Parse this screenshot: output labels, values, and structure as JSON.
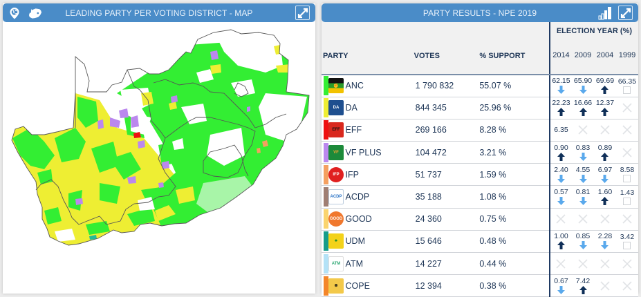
{
  "map_panel": {
    "title": "LEADING PARTY PER VOTING DISTRICT - MAP",
    "icons": [
      "globe-pin-icon",
      "south-africa-map-icon",
      "expand-icon"
    ],
    "map_colors": {
      "ANC": "#33ee33",
      "DA": "#eeee33",
      "EFF": "#ee1111",
      "VF_PLUS": "#bb88ee",
      "IFP": "#f4a060",
      "UDM": "#22bb99",
      "border": "#666666"
    }
  },
  "results_panel": {
    "title": "PARTY RESULTS - NPE 2019",
    "icons": [
      "bar-chart-icon",
      "expand-icon"
    ],
    "columns": {
      "party": "PARTY",
      "votes": "VOTES",
      "support": "% SUPPORT",
      "election_year": "ELECTION YEAR (%)",
      "years": [
        "2014",
        "2009",
        "2004",
        "1999"
      ]
    },
    "rows": [
      {
        "party": "ANC",
        "color": "#33ee33",
        "votes": "1 790 832",
        "support": "55.07 %",
        "history": [
          {
            "value": "62.15",
            "trend": "down"
          },
          {
            "value": "65.90",
            "trend": "down"
          },
          {
            "value": "69.69",
            "trend": "up"
          },
          {
            "value": "66.35",
            "trend": "none"
          }
        ]
      },
      {
        "party": "DA",
        "color": "#eeee33",
        "votes": "844 345",
        "support": "25.96 %",
        "history": [
          {
            "value": "22.23",
            "trend": "up"
          },
          {
            "value": "16.66",
            "trend": "up"
          },
          {
            "value": "12.37",
            "trend": "up"
          },
          {
            "value": "",
            "trend": "na"
          }
        ]
      },
      {
        "party": "EFF",
        "color": "#ee1111",
        "votes": "269 166",
        "support": "8.28 %",
        "history": [
          {
            "value": "6.35",
            "trend": "plain"
          },
          {
            "value": "",
            "trend": "na"
          },
          {
            "value": "",
            "trend": "na"
          },
          {
            "value": "",
            "trend": "na"
          }
        ]
      },
      {
        "party": "VF PLUS",
        "color": "#bb88ee",
        "votes": "104 472",
        "support": "3.21 %",
        "history": [
          {
            "value": "0.90",
            "trend": "up"
          },
          {
            "value": "0.83",
            "trend": "down"
          },
          {
            "value": "0.89",
            "trend": "up"
          },
          {
            "value": "",
            "trend": "na"
          }
        ]
      },
      {
        "party": "IFP",
        "color": "#f4a060",
        "votes": "51 737",
        "support": "1.59 %",
        "history": [
          {
            "value": "2.40",
            "trend": "down"
          },
          {
            "value": "4.55",
            "trend": "down"
          },
          {
            "value": "6.97",
            "trend": "down"
          },
          {
            "value": "8.58",
            "trend": "none"
          }
        ]
      },
      {
        "party": "ACDP",
        "color": "#a07e72",
        "votes": "35 188",
        "support": "1.08 %",
        "history": [
          {
            "value": "0.57",
            "trend": "down"
          },
          {
            "value": "0.81",
            "trend": "down"
          },
          {
            "value": "1.60",
            "trend": "up"
          },
          {
            "value": "1.43",
            "trend": "none"
          }
        ]
      },
      {
        "party": "GOOD",
        "color": "#fad46e",
        "votes": "24 360",
        "support": "0.75 %",
        "history": [
          {
            "value": "",
            "trend": "na"
          },
          {
            "value": "",
            "trend": "na"
          },
          {
            "value": "",
            "trend": "na"
          },
          {
            "value": "",
            "trend": "na"
          }
        ]
      },
      {
        "party": "UDM",
        "color": "#169c8a",
        "votes": "15 646",
        "support": "0.48 %",
        "history": [
          {
            "value": "1.00",
            "trend": "up"
          },
          {
            "value": "0.85",
            "trend": "down"
          },
          {
            "value": "2.28",
            "trend": "down"
          },
          {
            "value": "3.42",
            "trend": "none"
          }
        ]
      },
      {
        "party": "ATM",
        "color": "#b4e2f7",
        "votes": "14 227",
        "support": "0.44 %",
        "history": [
          {
            "value": "",
            "trend": "na"
          },
          {
            "value": "",
            "trend": "na"
          },
          {
            "value": "",
            "trend": "na"
          },
          {
            "value": "",
            "trend": "na"
          }
        ]
      },
      {
        "party": "COPE",
        "color": "#f4862a",
        "votes": "12 394",
        "support": "0.38 %",
        "history": [
          {
            "value": "0.67",
            "trend": "down"
          },
          {
            "value": "7.42",
            "trend": "up"
          },
          {
            "value": "",
            "trend": "na"
          },
          {
            "value": "",
            "trend": "na"
          }
        ]
      }
    ],
    "trend_colors": {
      "up": "#0f2f58",
      "down": "#5aa9ec",
      "na": "#e1e3e6"
    }
  }
}
